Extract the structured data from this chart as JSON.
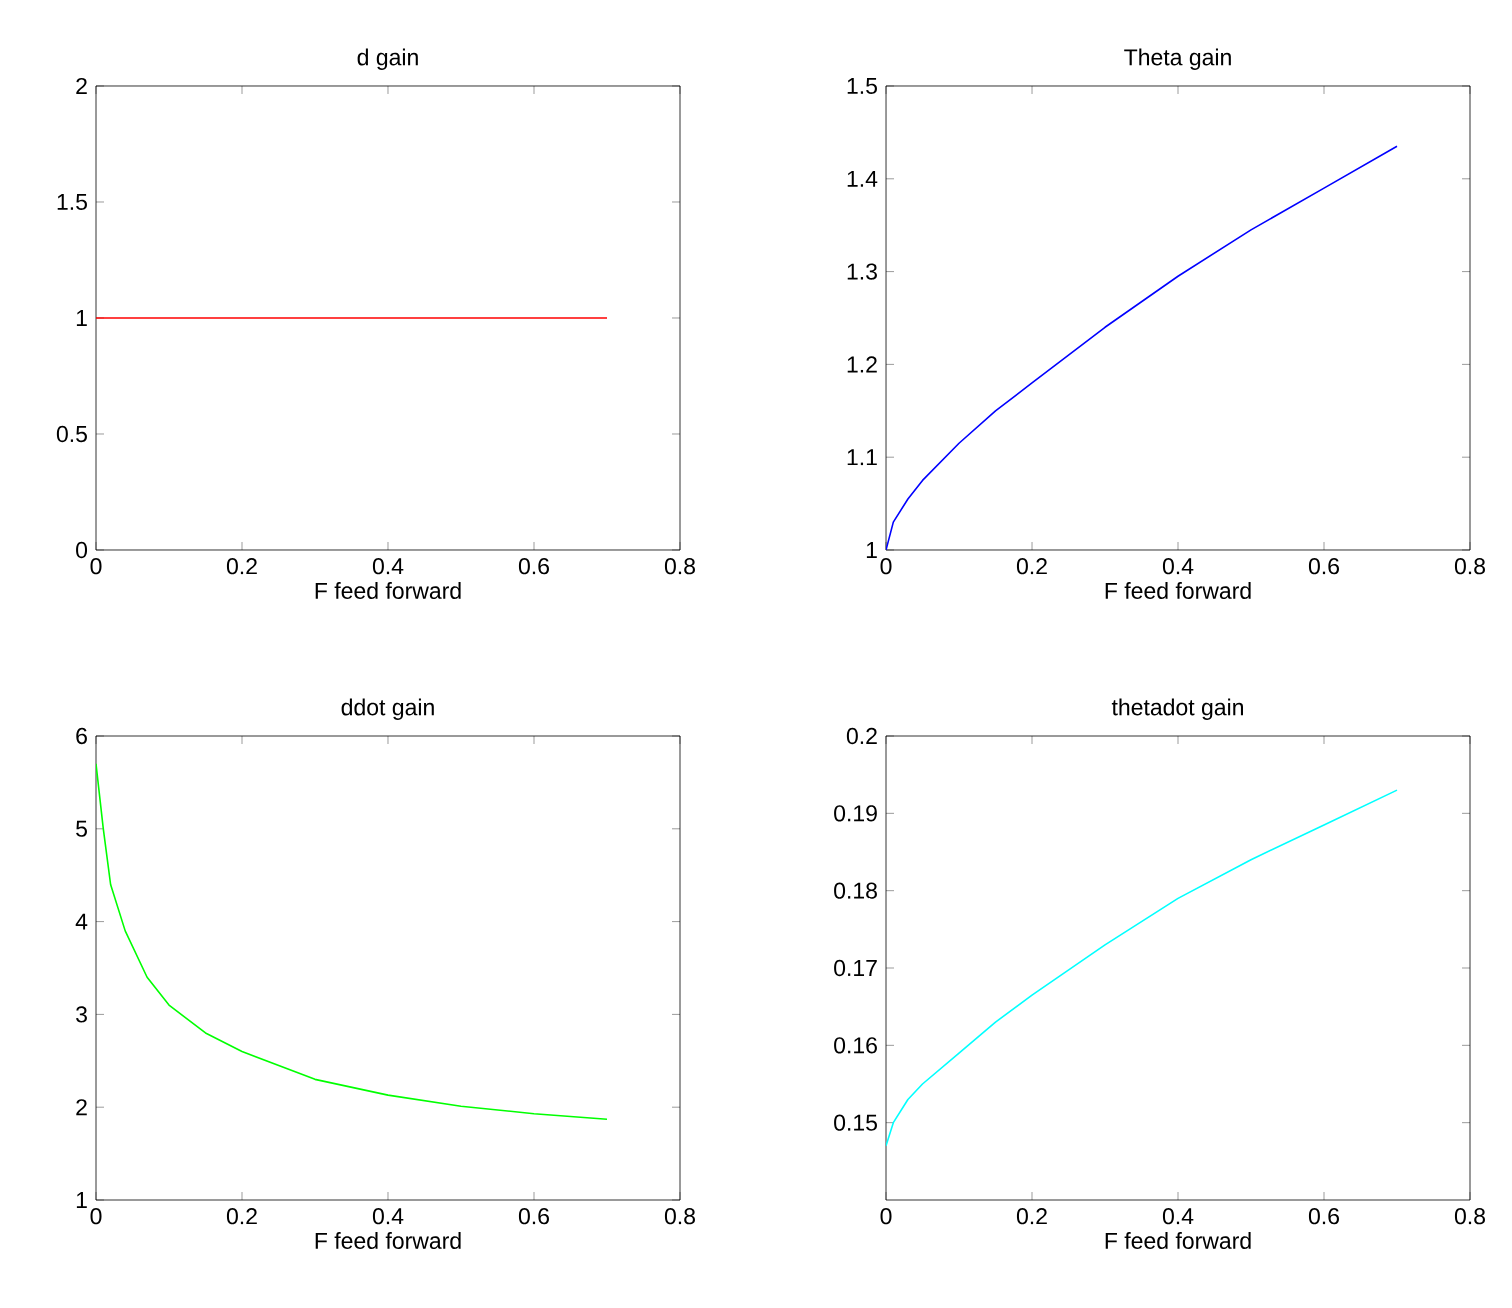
{
  "chart_data": [
    {
      "type": "line",
      "title": "d gain",
      "xlabel": "F feed forward",
      "x": [
        0,
        0.7
      ],
      "series": [
        {
          "color": "#ff0000",
          "values": [
            1,
            1
          ]
        }
      ],
      "xlim": [
        0,
        0.8
      ],
      "xticks": [
        0,
        0.2,
        0.4,
        0.6,
        0.8
      ],
      "ylim": [
        0,
        2
      ],
      "yticks": [
        0,
        0.5,
        1,
        1.5,
        2
      ]
    },
    {
      "type": "line",
      "title": "Theta gain",
      "xlabel": "F feed forward",
      "x": [
        0,
        0.01,
        0.03,
        0.05,
        0.1,
        0.15,
        0.2,
        0.3,
        0.4,
        0.5,
        0.6,
        0.7
      ],
      "series": [
        {
          "color": "#0000ff",
          "values": [
            1,
            1.03,
            1.055,
            1.075,
            1.115,
            1.15,
            1.18,
            1.24,
            1.295,
            1.345,
            1.39,
            1.435
          ]
        }
      ],
      "xlim": [
        0,
        0.8
      ],
      "xticks": [
        0,
        0.2,
        0.4,
        0.6,
        0.8
      ],
      "ylim": [
        1,
        1.5
      ],
      "yticks": [
        1,
        1.1,
        1.2,
        1.3,
        1.4,
        1.5
      ]
    },
    {
      "type": "line",
      "title": "ddot gain",
      "xlabel": "F feed forward",
      "x": [
        0,
        0.01,
        0.02,
        0.04,
        0.07,
        0.1,
        0.15,
        0.2,
        0.3,
        0.4,
        0.5,
        0.6,
        0.7
      ],
      "series": [
        {
          "color": "#00ff00",
          "values": [
            5.7,
            5.0,
            4.4,
            3.9,
            3.4,
            3.1,
            2.8,
            2.6,
            2.3,
            2.13,
            2.01,
            1.93,
            1.87
          ]
        }
      ],
      "xlim": [
        0,
        0.8
      ],
      "xticks": [
        0,
        0.2,
        0.4,
        0.6,
        0.8
      ],
      "ylim": [
        1,
        6
      ],
      "yticks": [
        1,
        2,
        3,
        4,
        5,
        6
      ]
    },
    {
      "type": "line",
      "title": "thetadot gain",
      "xlabel": "F feed forward",
      "x": [
        0,
        0.01,
        0.03,
        0.05,
        0.1,
        0.15,
        0.2,
        0.3,
        0.4,
        0.5,
        0.6,
        0.7
      ],
      "series": [
        {
          "color": "#00ffff",
          "values": [
            0.147,
            0.15,
            0.153,
            0.155,
            0.159,
            0.163,
            0.1665,
            0.173,
            0.179,
            0.184,
            0.1885,
            0.193
          ]
        }
      ],
      "xlim": [
        0,
        0.8
      ],
      "xticks": [
        0,
        0.2,
        0.4,
        0.6,
        0.8
      ],
      "ylim": [
        0.14,
        0.2
      ],
      "yticks": [
        0.15,
        0.16,
        0.17,
        0.18,
        0.19,
        0.2
      ]
    }
  ]
}
